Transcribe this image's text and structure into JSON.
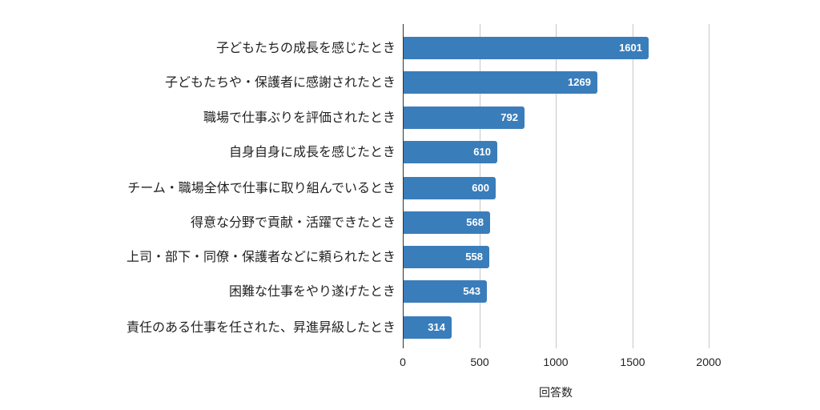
{
  "chart_data": {
    "type": "bar",
    "orientation": "horizontal",
    "title": "",
    "xlabel": "回答数",
    "ylabel": "",
    "xlim": [
      0,
      2000
    ],
    "xticks": [
      0,
      500,
      1000,
      1500,
      2000
    ],
    "grid": true,
    "legend": null,
    "bar_color": "#3a7dbb",
    "categories": [
      "子どもたちの成長を感じたとき",
      "子どもたちや・保護者に感謝されたとき",
      "職場で仕事ぶりを評価されたとき",
      "自身自身に成長を感じたとき",
      "チーム・職場全体で仕事に取り組んでいるとき",
      "得意な分野で貢献・活躍できたとき",
      "上司・部下・同僚・保護者などに頼られたとき",
      "困難な仕事をやり遂げたとき",
      "責任のある仕事を任された、昇進昇級したとき"
    ],
    "values": [
      1601,
      1269,
      792,
      610,
      600,
      568,
      558,
      543,
      314
    ],
    "value_labels": [
      "1601",
      "1269",
      "792",
      "610",
      "600",
      "568",
      "558",
      "543",
      "314"
    ],
    "tick_labels": [
      "0",
      "500",
      "1000",
      "1500",
      "2000"
    ]
  }
}
